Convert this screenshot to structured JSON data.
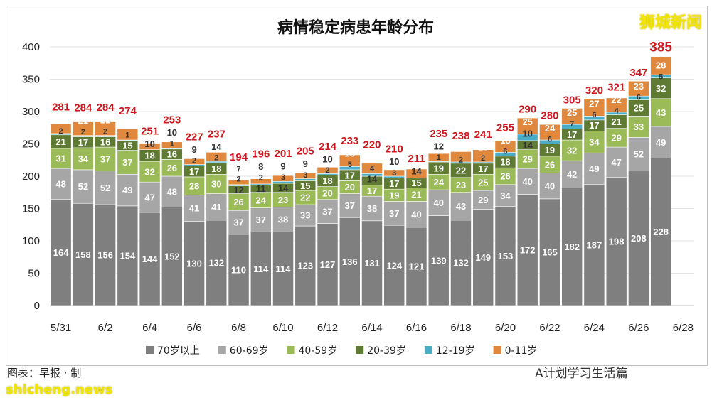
{
  "chart_data": {
    "type": "bar",
    "stacked": true,
    "title": "病情稳定病患年龄分布",
    "categories": [
      "5/31",
      "6/1",
      "6/2",
      "6/3",
      "6/4",
      "6/5",
      "6/6",
      "6/7",
      "6/8",
      "6/9",
      "6/10",
      "6/11",
      "6/12",
      "6/13",
      "6/14",
      "6/15",
      "6/16",
      "6/17",
      "6/18",
      "6/19",
      "6/20",
      "6/21",
      "6/22",
      "6/23",
      "6/24",
      "6/25",
      "6/26",
      "6/27",
      "6/28"
    ],
    "xtick_labels": [
      "5/31",
      "6/2",
      "6/4",
      "6/6",
      "6/8",
      "6/10",
      "6/12",
      "6/14",
      "6/16",
      "6/18",
      "6/20",
      "6/22",
      "6/24",
      "6/26",
      "6/28"
    ],
    "yticks": [
      0,
      50,
      100,
      150,
      200,
      250,
      300,
      350,
      400
    ],
    "ylim": [
      0,
      400
    ],
    "grid": true,
    "legend_position": "bottom",
    "series": [
      {
        "name": "70岁以上",
        "color": "#7f7f7f",
        "values": [
          164,
          158,
          156,
          154,
          144,
          152,
          130,
          132,
          110,
          114,
          114,
          123,
          127,
          136,
          131,
          124,
          121,
          139,
          132,
          149,
          153,
          172,
          165,
          182,
          187,
          198,
          208,
          228,
          null
        ]
      },
      {
        "name": "60-69岁",
        "color": "#a6a6a6",
        "values": [
          48,
          52,
          52,
          49,
          47,
          48,
          41,
          41,
          37,
          37,
          38,
          33,
          37,
          37,
          38,
          37,
          40,
          40,
          43,
          29,
          34,
          40,
          40,
          42,
          49,
          47,
          52,
          49,
          null
        ]
      },
      {
        "name": "40-59岁",
        "color": "#9bbb59",
        "values": [
          31,
          34,
          37,
          37,
          32,
          26,
          28,
          30,
          26,
          24,
          23,
          22,
          20,
          20,
          17,
          19,
          21,
          24,
          23,
          25,
          26,
          29,
          26,
          32,
          34,
          29,
          33,
          43,
          null
        ]
      },
      {
        "name": "20-39岁",
        "color": "#5f7a32",
        "values": [
          21,
          17,
          16,
          15,
          18,
          16,
          17,
          18,
          12,
          11,
          14,
          15,
          18,
          17,
          14,
          17,
          15,
          19,
          22,
          17,
          18,
          14,
          19,
          17,
          17,
          21,
          25,
          32,
          null
        ]
      },
      {
        "name": "12-19岁",
        "color": "#4bacc6",
        "values": [
          2,
          2,
          2,
          1,
          0,
          1,
          2,
          2,
          2,
          2,
          3,
          3,
          2,
          5,
          4,
          3,
          0,
          1,
          2,
          2,
          6,
          10,
          6,
          7,
          6,
          4,
          6,
          5,
          null
        ]
      },
      {
        "name": "0-11岁",
        "color": "#e0883e",
        "values": [
          15,
          21,
          21,
          18,
          10,
          10,
          9,
          14,
          7,
          8,
          9,
          9,
          10,
          18,
          16,
          10,
          14,
          12,
          16,
          19,
          18,
          25,
          24,
          25,
          27,
          22,
          23,
          28,
          null
        ]
      }
    ],
    "totals": [
      281,
      284,
      284,
      274,
      251,
      253,
      227,
      237,
      194,
      196,
      201,
      205,
      214,
      233,
      220,
      210,
      211,
      235,
      238,
      241,
      255,
      290,
      280,
      305,
      320,
      321,
      347,
      385,
      null
    ],
    "total_color": "#d0161e"
  },
  "watermarks": {
    "top_right": "狮城新闻",
    "bottom_left": "shicheng.news",
    "credit": "图表：早报 · 制",
    "wechat": "A计划学习生活篇"
  }
}
